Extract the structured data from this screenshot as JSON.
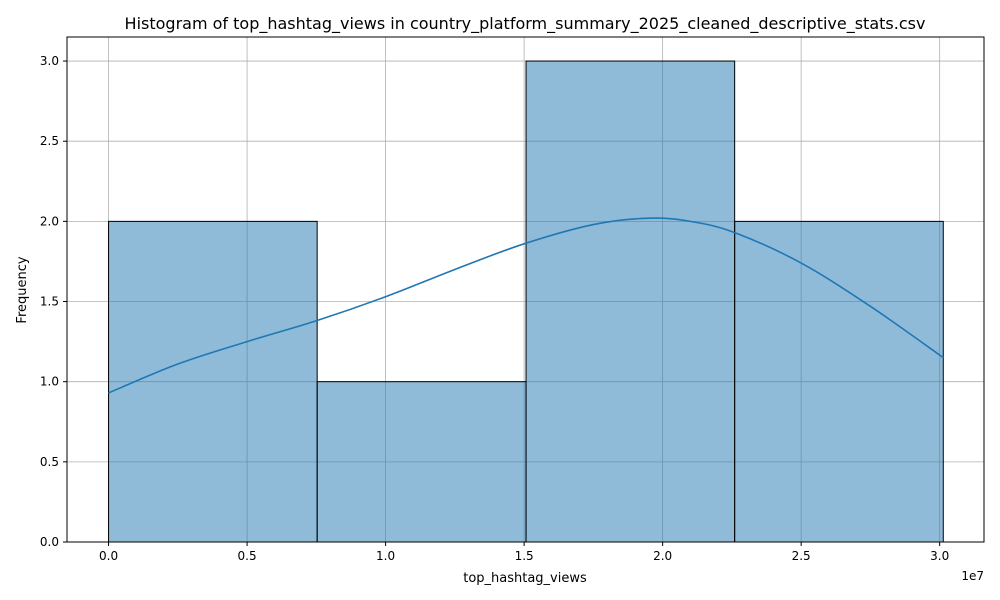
{
  "chart_data": {
    "type": "bar",
    "title": "Histogram of top_hashtag_views in country_platform_summary_2025_cleaned_descriptive_stats.csv",
    "xlabel": "top_hashtag_views",
    "ylabel": "Frequency",
    "x_offset_label": "1e7",
    "xlim": [
      -1500000,
      31600000
    ],
    "ylim": [
      0,
      3.15
    ],
    "x_ticks": [
      0,
      5000000,
      10000000,
      15000000,
      20000000,
      25000000,
      30000000
    ],
    "x_tick_labels": [
      "0.0",
      "0.5",
      "1.0",
      "1.5",
      "2.0",
      "2.5",
      "3.0"
    ],
    "y_ticks": [
      0,
      0.5,
      1,
      1.5,
      2,
      2.5,
      3
    ],
    "y_tick_labels": [
      "0.0",
      "0.5",
      "1.0",
      "1.5",
      "2.0",
      "2.5",
      "3.0"
    ],
    "bins": [
      {
        "start": 0,
        "end": 7530000,
        "count": 2
      },
      {
        "start": 7530000,
        "end": 15070000,
        "count": 1
      },
      {
        "start": 15070000,
        "end": 22600000,
        "count": 3
      },
      {
        "start": 22600000,
        "end": 30130000,
        "count": 2
      }
    ],
    "kde": {
      "x": [
        0,
        2500000,
        5000000,
        7500000,
        10000000,
        12500000,
        15000000,
        17500000,
        19500000,
        21000000,
        22600000,
        25000000,
        27500000,
        30130000
      ],
      "y": [
        0.93,
        1.11,
        1.25,
        1.38,
        1.53,
        1.7,
        1.86,
        1.98,
        2.02,
        2.0,
        1.93,
        1.74,
        1.47,
        1.15
      ]
    },
    "grid": true,
    "colors": {
      "bar_fill": "#1f77b4",
      "kde_line": "#1f77b4"
    }
  }
}
